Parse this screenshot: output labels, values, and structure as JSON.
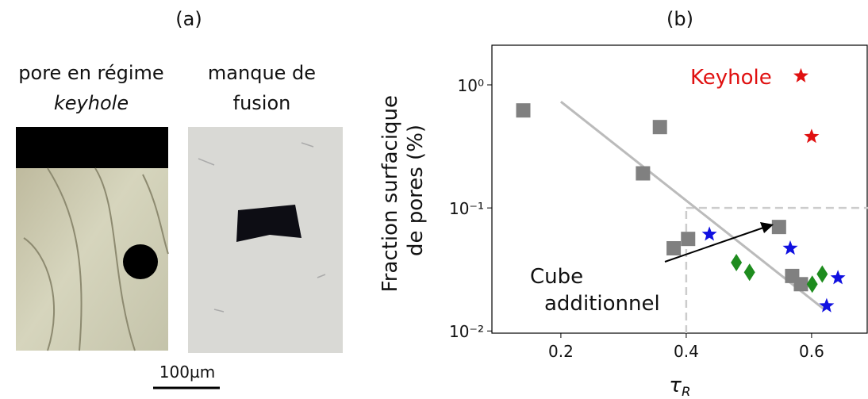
{
  "panel_a": {
    "label": "(a)",
    "left_caption": [
      "pore en régime",
      "keyhole"
    ],
    "right_caption": [
      "manque de",
      "fusion"
    ],
    "scale_bar": "100µm"
  },
  "chart_data": {
    "type": "scatter",
    "label": "(b)",
    "xlabel": {
      "base": "τ",
      "sub": "R"
    },
    "ylabel": [
      "Fraction surfacique",
      "de pores (%)"
    ],
    "xlim": [
      0.09,
      0.69
    ],
    "xticks": [
      0.2,
      0.4,
      0.6
    ],
    "ylim": [
      0.0096,
      2.1
    ],
    "log_y": true,
    "yticks": [
      {
        "value": 0.01,
        "label": "10⁻²"
      },
      {
        "value": 0.1,
        "label": "10⁻¹"
      },
      {
        "value": 1,
        "label": "10⁰"
      }
    ],
    "series": [
      {
        "marker": "square",
        "color": "#808080",
        "x": [
          0.14,
          0.331,
          0.358,
          0.38,
          0.403,
          0.548,
          0.569,
          0.583
        ],
        "values": [
          0.62,
          0.191,
          0.454,
          0.047,
          0.056,
          0.07,
          0.028,
          0.024
        ]
      },
      {
        "marker": "star",
        "color": "#1010e0",
        "x": [
          0.437,
          0.566,
          0.642,
          0.624
        ],
        "values": [
          0.061,
          0.047,
          0.027,
          0.016
        ]
      },
      {
        "marker": "diamond",
        "color": "#1e8c1e",
        "x": [
          0.48,
          0.501,
          0.601,
          0.617
        ],
        "values": [
          0.036,
          0.03,
          0.024,
          0.029
        ]
      },
      {
        "marker": "star",
        "color": "#e01010",
        "x": [
          0.583,
          0.6
        ],
        "values": [
          1.18,
          0.38
        ]
      }
    ],
    "trend": {
      "color": "#bbbbbb",
      "x": [
        0.2,
        0.62
      ],
      "values": [
        0.73,
        0.015
      ]
    },
    "threshold": {
      "x": 0.4,
      "y": 0.1,
      "color": "#cccccc"
    },
    "annotations": {
      "keyhole": "Keyhole",
      "keyhole_color": "#e01010",
      "cube": [
        "Cube",
        "additionnel"
      ]
    }
  }
}
